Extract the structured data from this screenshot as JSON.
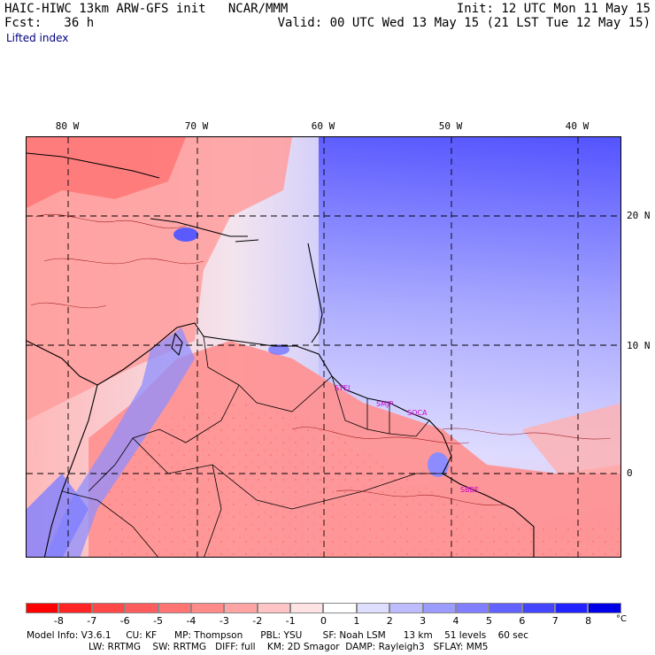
{
  "header": {
    "model_line": "HAIC-HIWC 13km ARW-GFS init   NCAR/MMM",
    "init_line": "Init: 12 UTC Mon 11 May 15",
    "fcst_line": "Fcst:   36 h",
    "valid_line": "Valid: 00 UTC Wed 13 May 15 (21 LST Tue 12 May 15)",
    "field": "Lifted index"
  },
  "map": {
    "lon_labels": [
      "80 W",
      "70 W",
      "60 W",
      "50 W",
      "40 W"
    ],
    "lat_labels": [
      "20 N",
      "10 N",
      "0"
    ],
    "stations": [
      "SYEJ",
      "SMJP",
      "SOCA",
      "SBBE"
    ]
  },
  "colorbar": {
    "ticks": [
      "-8",
      "-7",
      "-6",
      "-5",
      "-4",
      "-3",
      "-2",
      "-1",
      "0",
      "1",
      "2",
      "3",
      "4",
      "5",
      "6",
      "7",
      "8"
    ],
    "unit": "°C",
    "colors": [
      "#ff0000",
      "#ff2525",
      "#ff4848",
      "#ff5d5d",
      "#ff7373",
      "#ff8a8a",
      "#ffa4a4",
      "#ffc4c4",
      "#ffe3e3",
      "#ffffff",
      "#dedeff",
      "#bcbcff",
      "#9c9cff",
      "#7f7fff",
      "#6262ff",
      "#4545ff",
      "#2323ff",
      "#0000e8"
    ]
  },
  "footer": {
    "line1": "Model Info: V3.6.1     CU: KF      MP: Thompson      PBL: YSU       SF: Noah LSM      13 km    51 levels    60 sec",
    "line2": "LW: RRTMG    SW: RRTMG   DIFF: full    KM: 2D Smagor  DAMP: Rayleigh3   SFLAY: MM5"
  }
}
